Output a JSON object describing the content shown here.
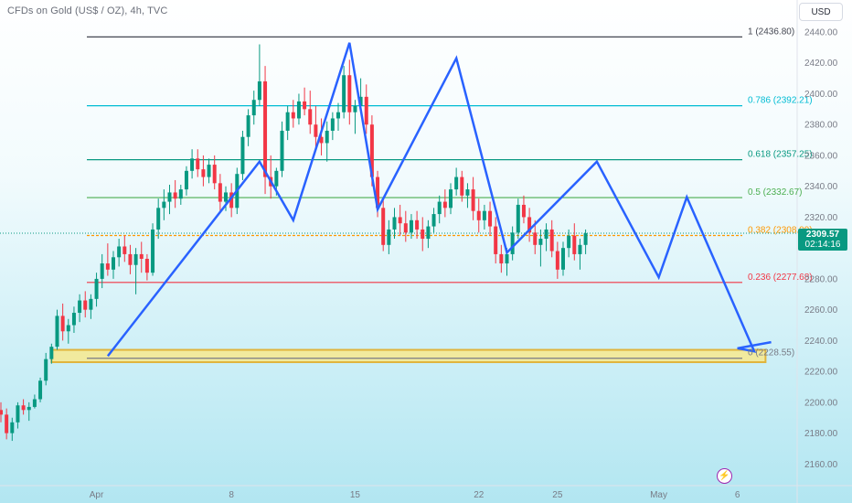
{
  "header": {
    "title": "CFDs on Gold (US$ / OZ), 4h, TVC",
    "currency_button": "USD"
  },
  "price_tag": {
    "price": "2309.57",
    "countdown": "02:14:16"
  },
  "colors": {
    "up": "#089981",
    "down": "#f23645",
    "pattern": "#2962ff",
    "zone_fill": "#f7e98e",
    "zone_border": "#e0b43c"
  },
  "icons": {
    "flash": "lightning-icon"
  },
  "chart_data": {
    "type": "candlestick",
    "title": "CFDs on Gold (US$ / OZ), 4h, TVC",
    "ylim": [
      2150,
      2445
    ],
    "y_ticks": [
      2160,
      2180,
      2200,
      2220,
      2240,
      2260,
      2280,
      2300,
      2320,
      2340,
      2360,
      2380,
      2400,
      2420,
      2440
    ],
    "x_ticks": [
      {
        "label": "Apr",
        "bar": 17
      },
      {
        "label": "8",
        "bar": 41
      },
      {
        "label": "15",
        "bar": 63
      },
      {
        "label": "22",
        "bar": 85
      },
      {
        "label": "25",
        "bar": 99
      },
      {
        "label": "May",
        "bar": 117
      },
      {
        "label": "6",
        "bar": 131
      }
    ],
    "fib_levels": [
      {
        "label": "1 (2436.80)",
        "value": 2436.8,
        "color": "#434651"
      },
      {
        "label": "0.786 (2392.21)",
        "value": 2392.21,
        "color": "#00bcd4"
      },
      {
        "label": "0.618 (2357.25)",
        "value": 2357.25,
        "color": "#089981"
      },
      {
        "label": "0.5 (2332.67)",
        "value": 2332.67,
        "color": "#4caf50"
      },
      {
        "label": "0.382 (2308.09)",
        "value": 2308.09,
        "color": "#ff9800"
      },
      {
        "label": "0.236 (2277.68)",
        "value": 2277.68,
        "color": "#f23645"
      },
      {
        "label": "0 (2228.55)",
        "value": 2228.55,
        "color": "#787b86"
      }
    ],
    "support_zone": {
      "from_bar": 9,
      "to_bar": 136,
      "low": 2226,
      "high": 2234
    },
    "pattern_line": [
      [
        19,
        2230
      ],
      [
        46,
        2356
      ],
      [
        52,
        2318
      ],
      [
        62,
        2433
      ],
      [
        67,
        2325
      ],
      [
        81,
        2423
      ],
      [
        90,
        2297
      ],
      [
        106,
        2356
      ],
      [
        117,
        2281
      ],
      [
        122,
        2333
      ],
      [
        134,
        2233
      ],
      [
        131,
        2235
      ],
      [
        137,
        2239
      ]
    ],
    "candles": [
      [
        2195,
        2200,
        2187,
        2192
      ],
      [
        2192,
        2196,
        2176,
        2180
      ],
      [
        2180,
        2190,
        2175,
        2187
      ],
      [
        2187,
        2200,
        2183,
        2198
      ],
      [
        2198,
        2202,
        2192,
        2195
      ],
      [
        2195,
        2200,
        2188,
        2197
      ],
      [
        2197,
        2205,
        2196,
        2202
      ],
      [
        2202,
        2216,
        2200,
        2214
      ],
      [
        2214,
        2232,
        2211,
        2228
      ],
      [
        2228,
        2238,
        2225,
        2236
      ],
      [
        2236,
        2260,
        2234,
        2256
      ],
      [
        2256,
        2264,
        2240,
        2246
      ],
      [
        2246,
        2254,
        2238,
        2250
      ],
      [
        2250,
        2262,
        2245,
        2258
      ],
      [
        2258,
        2270,
        2252,
        2266
      ],
      [
        2266,
        2272,
        2255,
        2260
      ],
      [
        2260,
        2270,
        2254,
        2267
      ],
      [
        2267,
        2284,
        2262,
        2280
      ],
      [
        2280,
        2296,
        2274,
        2290
      ],
      [
        2290,
        2303,
        2282,
        2286
      ],
      [
        2286,
        2298,
        2280,
        2294
      ],
      [
        2294,
        2306,
        2288,
        2301
      ],
      [
        2301,
        2308,
        2291,
        2296
      ],
      [
        2296,
        2302,
        2283,
        2289
      ],
      [
        2289,
        2300,
        2270,
        2296
      ],
      [
        2296,
        2304,
        2284,
        2293
      ],
      [
        2293,
        2296,
        2279,
        2284
      ],
      [
        2284,
        2316,
        2282,
        2312
      ],
      [
        2312,
        2332,
        2306,
        2326
      ],
      [
        2326,
        2338,
        2318,
        2330
      ],
      [
        2330,
        2341,
        2322,
        2336
      ],
      [
        2336,
        2344,
        2326,
        2332
      ],
      [
        2332,
        2341,
        2328,
        2338
      ],
      [
        2338,
        2353,
        2334,
        2350
      ],
      [
        2350,
        2364,
        2345,
        2358
      ],
      [
        2358,
        2364,
        2346,
        2351
      ],
      [
        2351,
        2360,
        2340,
        2346
      ],
      [
        2346,
        2358,
        2342,
        2354
      ],
      [
        2354,
        2360,
        2338,
        2342
      ],
      [
        2342,
        2348,
        2324,
        2330
      ],
      [
        2330,
        2340,
        2324,
        2336
      ],
      [
        2336,
        2342,
        2320,
        2326
      ],
      [
        2326,
        2352,
        2322,
        2348
      ],
      [
        2348,
        2376,
        2344,
        2372
      ],
      [
        2372,
        2390,
        2366,
        2386
      ],
      [
        2386,
        2402,
        2380,
        2396
      ],
      [
        2396,
        2432,
        2392,
        2408
      ],
      [
        2408,
        2418,
        2335,
        2346
      ],
      [
        2346,
        2360,
        2332,
        2340
      ],
      [
        2340,
        2352,
        2334,
        2350
      ],
      [
        2350,
        2382,
        2346,
        2376
      ],
      [
        2376,
        2392,
        2370,
        2388
      ],
      [
        2388,
        2396,
        2378,
        2384
      ],
      [
        2384,
        2400,
        2380,
        2395
      ],
      [
        2395,
        2404,
        2386,
        2390
      ],
      [
        2390,
        2402,
        2374,
        2380
      ],
      [
        2380,
        2392,
        2364,
        2372
      ],
      [
        2372,
        2384,
        2360,
        2368
      ],
      [
        2368,
        2382,
        2356,
        2376
      ],
      [
        2376,
        2388,
        2370,
        2384
      ],
      [
        2384,
        2394,
        2376,
        2388
      ],
      [
        2388,
        2418,
        2384,
        2412
      ],
      [
        2412,
        2422,
        2380,
        2388
      ],
      [
        2388,
        2396,
        2374,
        2392
      ],
      [
        2392,
        2410,
        2388,
        2398
      ],
      [
        2398,
        2406,
        2374,
        2380
      ],
      [
        2380,
        2386,
        2340,
        2346
      ],
      [
        2346,
        2350,
        2320,
        2326
      ],
      [
        2326,
        2332,
        2298,
        2302
      ],
      [
        2302,
        2318,
        2296,
        2312
      ],
      [
        2312,
        2326,
        2306,
        2320
      ],
      [
        2320,
        2328,
        2308,
        2316
      ],
      [
        2316,
        2324,
        2304,
        2310
      ],
      [
        2310,
        2322,
        2306,
        2318
      ],
      [
        2318,
        2324,
        2306,
        2312
      ],
      [
        2312,
        2320,
        2298,
        2306
      ],
      [
        2306,
        2318,
        2300,
        2314
      ],
      [
        2314,
        2326,
        2310,
        2322
      ],
      [
        2322,
        2334,
        2316,
        2330
      ],
      [
        2330,
        2338,
        2320,
        2326
      ],
      [
        2326,
        2342,
        2322,
        2338
      ],
      [
        2338,
        2352,
        2334,
        2346
      ],
      [
        2346,
        2350,
        2330,
        2334
      ],
      [
        2334,
        2342,
        2326,
        2338
      ],
      [
        2338,
        2346,
        2318,
        2324
      ],
      [
        2324,
        2332,
        2310,
        2318
      ],
      [
        2318,
        2328,
        2312,
        2324
      ],
      [
        2324,
        2330,
        2308,
        2314
      ],
      [
        2314,
        2320,
        2290,
        2296
      ],
      [
        2296,
        2302,
        2284,
        2290
      ],
      [
        2290,
        2300,
        2282,
        2296
      ],
      [
        2296,
        2314,
        2292,
        2310
      ],
      [
        2310,
        2332,
        2306,
        2328
      ],
      [
        2328,
        2334,
        2316,
        2320
      ],
      [
        2320,
        2326,
        2304,
        2310
      ],
      [
        2310,
        2318,
        2296,
        2302
      ],
      [
        2302,
        2312,
        2288,
        2306
      ],
      [
        2306,
        2316,
        2298,
        2312
      ],
      [
        2312,
        2318,
        2294,
        2298
      ],
      [
        2298,
        2304,
        2280,
        2286
      ],
      [
        2286,
        2304,
        2282,
        2300
      ],
      [
        2300,
        2312,
        2294,
        2308
      ],
      [
        2308,
        2316,
        2292,
        2296
      ],
      [
        2296,
        2306,
        2286,
        2302
      ],
      [
        2302,
        2312,
        2296,
        2309.57
      ]
    ]
  }
}
